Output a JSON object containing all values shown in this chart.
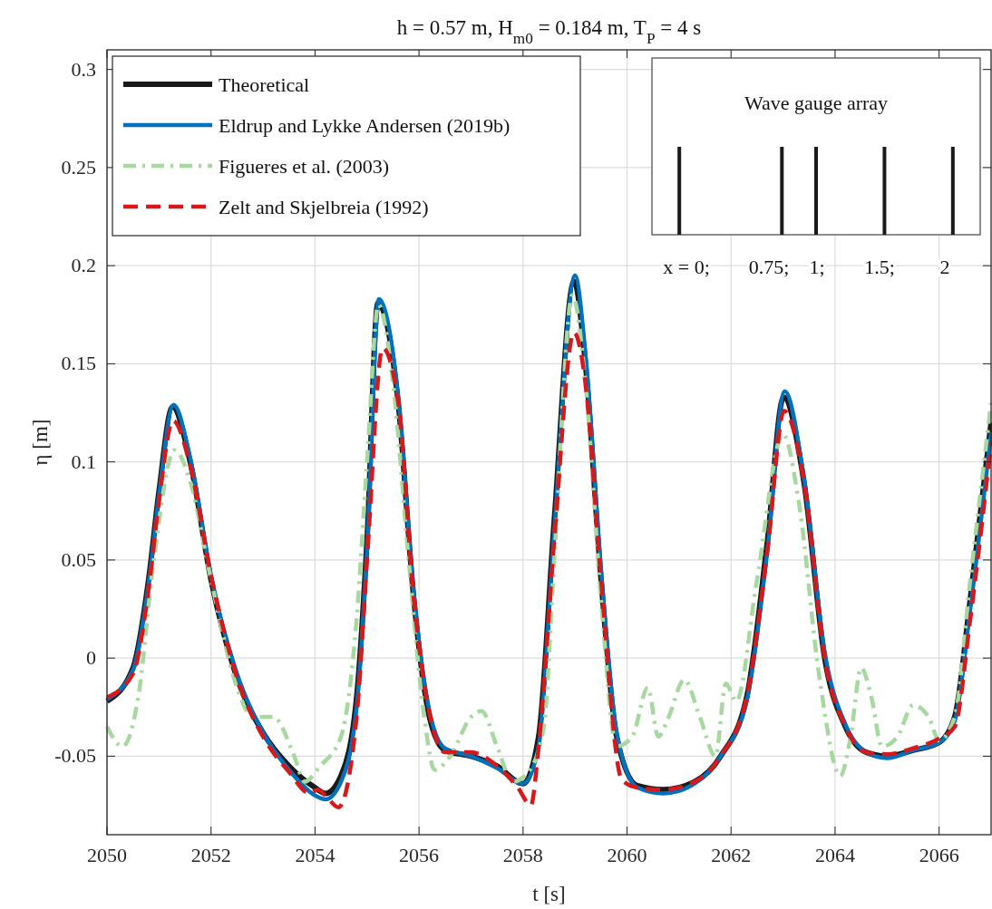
{
  "chart_data": {
    "type": "line",
    "title": "h = 0.57 m, H$_{m0}$ = 0.184 m, T$_{P}$ = 4 s",
    "xlabel": "t [s]",
    "ylabel": "η [m]",
    "xlim": [
      2050,
      2067
    ],
    "xticks": [
      2050,
      2052,
      2054,
      2056,
      2058,
      2060,
      2062,
      2064,
      2066
    ],
    "ylim": [
      -0.09,
      0.31
    ],
    "yticks": [
      -0.05,
      0,
      0.05,
      0.1,
      0.15,
      0.2,
      0.25,
      0.3
    ],
    "grid": true,
    "legend": "top left",
    "annotations": [
      "Wave gauge array",
      "x = 0;",
      "0.75;",
      "1;",
      "1.5;",
      "2"
    ],
    "series": [
      {
        "name": "Theoretical",
        "color": "#1a1a1a",
        "line_style": "solid",
        "x": [
          2050,
          2050.5,
          2050.8,
          2051,
          2051.26,
          2051.6,
          2052,
          2052.5,
          2053,
          2053.5,
          2054,
          2054.2,
          2054.5,
          2054.8,
          2055,
          2055.21,
          2055.6,
          2055.9,
          2056.2,
          2056.5,
          2057,
          2057.5,
          2058,
          2058.3,
          2058.6,
          2058.98,
          2059.2,
          2059.5,
          2059.8,
          2060.2,
          2060.7,
          2061.3,
          2061.8,
          2062.3,
          2062.7,
          2063.01,
          2063.4,
          2063.8,
          2064.2,
          2064.6,
          2065,
          2065.5,
          2066,
          2066.3,
          2066.6,
          2067
        ],
        "values": [
          -0.022,
          -0.005,
          0.04,
          0.085,
          0.128,
          0.1,
          0.04,
          -0.01,
          -0.038,
          -0.055,
          -0.066,
          -0.069,
          -0.06,
          -0.02,
          0.06,
          0.181,
          0.13,
          0.03,
          -0.03,
          -0.047,
          -0.05,
          -0.055,
          -0.064,
          -0.04,
          0.07,
          0.192,
          0.15,
          0.04,
          -0.04,
          -0.065,
          -0.067,
          -0.063,
          -0.05,
          -0.02,
          0.06,
          0.133,
          0.09,
          0.0,
          -0.035,
          -0.048,
          -0.05,
          -0.047,
          -0.043,
          -0.03,
          0.03,
          0.12
        ]
      },
      {
        "name": "Eldrup and Lykke Andersen (2019b)",
        "color": "#0072bd",
        "line_style": "solid",
        "x": [
          2050,
          2050.5,
          2050.8,
          2051,
          2051.28,
          2051.6,
          2052,
          2052.5,
          2053,
          2053.5,
          2054,
          2054.2,
          2054.5,
          2054.8,
          2055,
          2055.23,
          2055.6,
          2055.9,
          2056.2,
          2056.5,
          2057,
          2057.5,
          2058,
          2058.3,
          2058.6,
          2059.0,
          2059.2,
          2059.5,
          2059.8,
          2060.2,
          2060.7,
          2061.3,
          2061.8,
          2062.3,
          2062.7,
          2063.03,
          2063.4,
          2063.8,
          2064.2,
          2064.6,
          2065,
          2065.5,
          2066,
          2066.3,
          2066.6,
          2067
        ],
        "values": [
          -0.021,
          -0.006,
          0.038,
          0.083,
          0.129,
          0.102,
          0.042,
          -0.008,
          -0.038,
          -0.057,
          -0.07,
          -0.072,
          -0.063,
          -0.025,
          0.055,
          0.183,
          0.133,
          0.033,
          -0.027,
          -0.046,
          -0.05,
          -0.056,
          -0.064,
          -0.045,
          0.065,
          0.195,
          0.155,
          0.045,
          -0.038,
          -0.066,
          -0.069,
          -0.064,
          -0.05,
          -0.022,
          0.055,
          0.136,
          0.092,
          0.003,
          -0.034,
          -0.048,
          -0.051,
          -0.047,
          -0.043,
          -0.032,
          0.025,
          0.115
        ]
      },
      {
        "name": "Figueres et al. (2003)",
        "color": "#a6d8a0",
        "line_style": "dashdot",
        "x": [
          2050,
          2050.3,
          2050.6,
          2050.9,
          2051.3,
          2051.6,
          2052,
          2052.5,
          2052.8,
          2053.2,
          2053.6,
          2053.8,
          2054.1,
          2054.5,
          2054.8,
          2055,
          2055.22,
          2055.5,
          2055.8,
          2056.1,
          2056.3,
          2056.6,
          2057,
          2057.2,
          2057.5,
          2057.8,
          2058.1,
          2058.4,
          2058.6,
          2058.95,
          2059.2,
          2059.5,
          2059.8,
          2060.1,
          2060.4,
          2060.6,
          2060.8,
          2061.1,
          2061.4,
          2061.7,
          2061.9,
          2062.1,
          2062.5,
          2063,
          2063.3,
          2063.7,
          2064.1,
          2064.3,
          2064.5,
          2064.7,
          2064.9,
          2065.2,
          2065.5,
          2065.8,
          2066,
          2066.3,
          2066.6,
          2067
        ],
        "values": [
          -0.035,
          -0.045,
          -0.02,
          0.05,
          0.106,
          0.09,
          0.04,
          -0.015,
          -0.03,
          -0.03,
          -0.05,
          -0.063,
          -0.055,
          -0.04,
          0.02,
          0.1,
          0.18,
          0.14,
          0.05,
          -0.03,
          -0.057,
          -0.05,
          -0.03,
          -0.027,
          -0.045,
          -0.063,
          -0.058,
          -0.035,
          0.05,
          0.185,
          0.14,
          0.03,
          -0.045,
          -0.04,
          -0.015,
          -0.04,
          -0.03,
          -0.011,
          -0.03,
          -0.05,
          -0.013,
          -0.022,
          0.04,
          0.114,
          0.08,
          -0.01,
          -0.06,
          -0.04,
          -0.005,
          -0.02,
          -0.045,
          -0.04,
          -0.024,
          -0.03,
          -0.042,
          -0.03,
          0.04,
          0.13
        ]
      },
      {
        "name": "Zelt and Skjelbreia (1992)",
        "color": "#d7191c",
        "line_style": "dashed",
        "x": [
          2050,
          2050.5,
          2050.8,
          2051,
          2051.27,
          2051.6,
          2052,
          2052.5,
          2053,
          2053.5,
          2053.9,
          2054.05,
          2054.2,
          2054.45,
          2054.8,
          2055,
          2055.3,
          2055.6,
          2055.9,
          2056.2,
          2056.5,
          2057,
          2057.5,
          2057.9,
          2058.15,
          2058.3,
          2058.6,
          2058.98,
          2059.2,
          2059.5,
          2059.9,
          2060.2,
          2060.7,
          2061.3,
          2061.8,
          2062.3,
          2062.7,
          2063.02,
          2063.4,
          2063.8,
          2064.2,
          2064.6,
          2065,
          2065.5,
          2066,
          2066.3,
          2066.6,
          2067
        ],
        "values": [
          -0.02,
          -0.008,
          0.035,
          0.08,
          0.121,
          0.098,
          0.042,
          -0.01,
          -0.04,
          -0.058,
          -0.069,
          -0.067,
          -0.07,
          -0.076,
          -0.03,
          0.05,
          0.158,
          0.13,
          0.03,
          -0.028,
          -0.048,
          -0.048,
          -0.055,
          -0.066,
          -0.075,
          -0.045,
          0.06,
          0.166,
          0.14,
          0.04,
          -0.062,
          -0.066,
          -0.067,
          -0.063,
          -0.05,
          -0.02,
          0.055,
          0.126,
          0.09,
          0.0,
          -0.035,
          -0.048,
          -0.049,
          -0.046,
          -0.041,
          -0.035,
          0.02,
          0.11
        ]
      }
    ]
  }
}
